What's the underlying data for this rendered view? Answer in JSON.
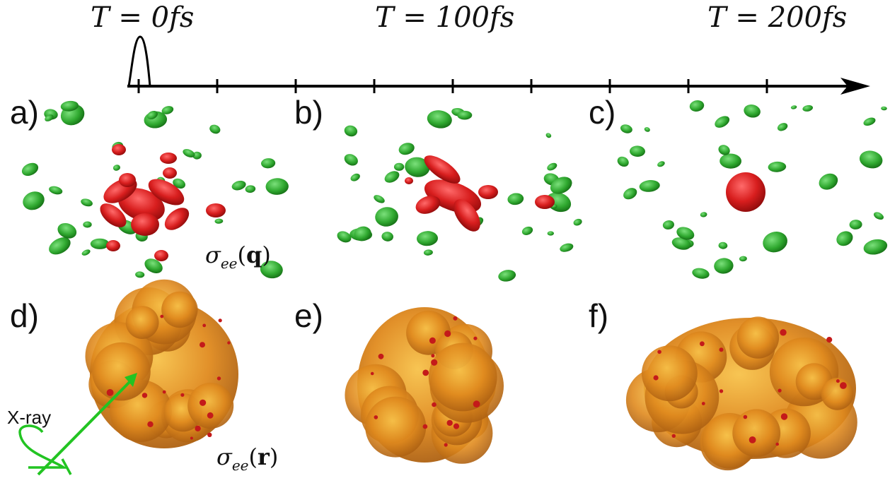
{
  "timeline": {
    "labels": [
      "T = 0fs",
      "T = 100fs",
      "T = 200fs"
    ]
  },
  "panels": {
    "a": "a)",
    "b": "b)",
    "c": "c)",
    "d": "d)",
    "e": "e)",
    "f": "f)"
  },
  "annotations": {
    "sigma_prefix": "σ",
    "sigma_sub": "ee",
    "q_open": "(",
    "q_var": "q",
    "q_close": ")",
    "r_var": "r",
    "xray": "X-ray"
  },
  "colors": {
    "green_spot": "#2fa82f",
    "red_blob": "#d81e1e",
    "orange_density": "#e08a1e",
    "xray_beam": "#22c422",
    "axis": "#000000"
  }
}
